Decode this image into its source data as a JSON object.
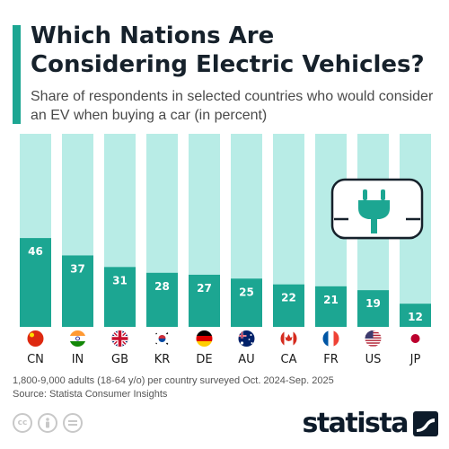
{
  "header": {
    "title": "Which Nations Are Considering Electric Vehicles?",
    "subtitle": "Share of respondents in selected countries who would consider an EV when buying a car (in percent)"
  },
  "chart_data": {
    "type": "bar",
    "categories": [
      "CN",
      "IN",
      "GB",
      "KR",
      "DE",
      "AU",
      "CA",
      "FR",
      "US",
      "JP"
    ],
    "values": [
      46,
      37,
      31,
      28,
      27,
      25,
      22,
      21,
      19,
      12
    ],
    "ylim": [
      0,
      100
    ],
    "grid": false,
    "legend": "none",
    "colors": {
      "bar": "#1ca692",
      "background_bar": "#b8ece6",
      "label": "#ffffff",
      "icon": "#1ca692"
    }
  },
  "flags": [
    {
      "country": "CN",
      "icon": "china-flag-icon"
    },
    {
      "country": "IN",
      "icon": "india-flag-icon"
    },
    {
      "country": "GB",
      "icon": "uk-flag-icon"
    },
    {
      "country": "KR",
      "icon": "south-korea-flag-icon"
    },
    {
      "country": "DE",
      "icon": "germany-flag-icon"
    },
    {
      "country": "AU",
      "icon": "australia-flag-icon"
    },
    {
      "country": "CA",
      "icon": "canada-flag-icon"
    },
    {
      "country": "FR",
      "icon": "france-flag-icon"
    },
    {
      "country": "US",
      "icon": "usa-flag-icon"
    },
    {
      "country": "JP",
      "icon": "japan-flag-icon"
    }
  ],
  "footer": {
    "note": "1,800-9,000 adults (18-64 y/o) per country surveyed Oct. 2024-Sep. 2025",
    "source": "Source: Statista Consumer Insights",
    "brand": "statista"
  },
  "license_icons": [
    "creative-commons-icon",
    "attribution-icon",
    "no-derivatives-icon"
  ],
  "icons": {
    "illustration": "ev-car-plug-icon",
    "logo_mark": "statista-logo-icon"
  }
}
